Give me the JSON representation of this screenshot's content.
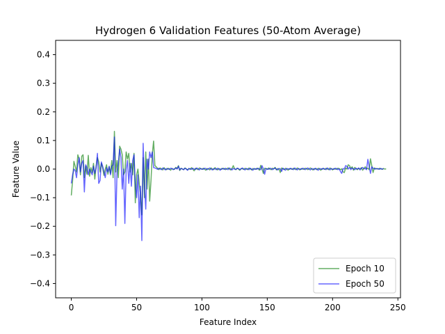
{
  "chart_data": {
    "type": "line",
    "title": "Hydrogen 6 Validation Features (50-Atom Average)",
    "xlabel": "Feature Index",
    "ylabel": "Feature Value",
    "xlim": [
      -12,
      252
    ],
    "ylim": [
      -0.45,
      0.45
    ],
    "xticks": [
      0,
      50,
      100,
      150,
      200,
      250
    ],
    "yticks": [
      -0.4,
      -0.3,
      -0.2,
      -0.1,
      0.0,
      0.1,
      0.2,
      0.3,
      0.4
    ],
    "xtick_labels": [
      "0",
      "50",
      "100",
      "150",
      "200",
      "250"
    ],
    "ytick_labels": [
      "−0.4",
      "−0.3",
      "−0.2",
      "−0.1",
      "0.0",
      "0.1",
      "0.2",
      "0.3",
      "0.4"
    ],
    "grid": false,
    "legend_position": "lower-right",
    "series": [
      {
        "name": "Epoch 10",
        "color": "#228b22",
        "opacity": 0.7,
        "x_start": 0,
        "x_step": 1,
        "values": [
          -0.092,
          -0.04,
          0.027,
          0.01,
          -0.01,
          0.05,
          0.035,
          -0.02,
          0.045,
          0.05,
          -0.03,
          0.01,
          -0.018,
          0.048,
          -0.025,
          0.005,
          -0.012,
          0.02,
          -0.035,
          0.01,
          0.04,
          0.025,
          -0.01,
          0.02,
          0.005,
          -0.022,
          0.0,
          0.015,
          -0.018,
          0.008,
          -0.015,
          0.03,
          -0.03,
          0.132,
          -0.01,
          0.03,
          -0.03,
          0.08,
          0.07,
          0.05,
          -0.02,
          -0.01,
          0.06,
          0.035,
          0.055,
          -0.01,
          0.02,
          -0.02,
          0.055,
          -0.118,
          -0.02,
          0.0,
          -0.05,
          -0.09,
          -0.16,
          0.04,
          -0.1,
          0.06,
          -0.07,
          0.035,
          -0.112,
          -0.04,
          0.052,
          0.098,
          0.012,
          0.008,
          0.003,
          -0.002,
          0.004,
          0.001,
          -0.003,
          0.005,
          0.0,
          -0.002,
          0.003,
          0.001,
          -0.004,
          0.002,
          0.0,
          -0.001,
          0.006,
          0.002,
          0.012,
          -0.005,
          0.003,
          0.0,
          -0.002,
          0.004,
          0.001,
          -0.003,
          0.002,
          -0.001,
          0.005,
          0.0,
          -0.006,
          0.003,
          0.001,
          -0.002,
          0.004,
          0.002,
          -0.001,
          0.003,
          0.0,
          -0.004,
          0.002,
          0.001,
          -0.003,
          0.004,
          0.0,
          -0.002,
          0.005,
          0.001,
          -0.003,
          0.002,
          0.0,
          -0.001,
          0.003,
          0.002,
          -0.002,
          0.001,
          0.004,
          0.0,
          -0.003,
          0.002,
          0.012,
          0.001,
          -0.002,
          0.003,
          0.0,
          -0.004,
          0.002,
          0.001,
          -0.001,
          0.003,
          0.0,
          -0.002,
          0.004,
          0.001,
          -0.003,
          0.002,
          0.0,
          -0.001,
          0.003,
          0.002,
          -0.004,
          0.013,
          0.0,
          -0.015,
          0.003,
          0.002,
          -0.001,
          0.004,
          0.0,
          -0.002,
          0.003,
          0.001,
          0.006,
          -0.003,
          0.002,
          0.0,
          -0.012,
          0.004,
          0.001,
          -0.002,
          0.003,
          0.0,
          -0.004,
          0.002,
          0.001,
          -0.001,
          0.003,
          0.0,
          -0.002,
          0.004,
          0.001,
          -0.003,
          0.002,
          0.0,
          -0.001,
          0.003,
          0.002,
          -0.002,
          0.001,
          0.004,
          0.0,
          -0.003,
          0.002,
          0.001,
          -0.002,
          0.003,
          0.0,
          -0.004,
          0.002,
          0.001,
          -0.001,
          0.003,
          0.0,
          -0.002,
          0.004,
          0.001,
          -0.003,
          0.002,
          0.0,
          -0.001,
          0.003,
          0.002,
          -0.002,
          0.001,
          -0.01,
          -0.012,
          0.004,
          0.0,
          0.015,
          0.012,
          0.002,
          0.008,
          -0.004,
          0.006,
          0.001,
          -0.002,
          0.003,
          0.0,
          0.005,
          -0.004,
          0.002,
          0.008,
          0.001,
          0.003,
          -0.002,
          0.036,
          0.012,
          -0.012,
          0.004,
          0.002,
          0.001,
          0.0,
          0.003,
          0.001,
          -0.001,
          0.002,
          0.0,
          0.001
        ],
        "legend_label": "Epoch 10"
      },
      {
        "name": "Epoch 50",
        "color": "#0000ff",
        "opacity": 0.6,
        "x_start": 0,
        "x_step": 1,
        "values": [
          -0.05,
          -0.02,
          0.0,
          -0.005,
          -0.03,
          0.015,
          0.04,
          -0.01,
          0.02,
          0.03,
          -0.08,
          0.015,
          0.005,
          -0.02,
          0.0,
          -0.01,
          -0.02,
          0.01,
          -0.015,
          0.005,
          0.055,
          -0.05,
          -0.04,
          0.025,
          0.01,
          -0.01,
          -0.03,
          0.005,
          -0.01,
          0.01,
          -0.02,
          0.01,
          0.015,
          0.112,
          -0.198,
          -0.01,
          0.02,
          0.07,
          0.04,
          -0.07,
          0.0,
          -0.19,
          0.0,
          0.03,
          -0.05,
          0.02,
          -0.06,
          0.03,
          0.05,
          -0.05,
          -0.1,
          -0.02,
          -0.17,
          -0.06,
          -0.25,
          0.09,
          -0.06,
          -0.14,
          0.035,
          0.0,
          0.06,
          0.04,
          0.06,
          0.005,
          0.004,
          0.002,
          -0.001,
          0.003,
          0.0,
          -0.002,
          0.004,
          0.001,
          -0.003,
          0.002,
          0.0,
          -0.001,
          0.003,
          0.002,
          -0.002,
          0.001,
          0.004,
          0.0,
          0.01,
          -0.003,
          0.002,
          0.001,
          -0.002,
          0.003,
          0.0,
          -0.004,
          0.002,
          0.001,
          -0.001,
          0.003,
          0.0,
          -0.002,
          0.004,
          0.001,
          -0.003,
          0.002,
          0.0,
          -0.001,
          0.003,
          0.002,
          -0.002,
          0.001,
          0.004,
          0.0,
          -0.003,
          0.002,
          0.001,
          -0.002,
          0.003,
          0.0,
          -0.004,
          0.002,
          0.001,
          -0.001,
          0.003,
          0.0,
          -0.002,
          0.004,
          0.001,
          -0.003,
          0.002,
          0.0,
          -0.001,
          0.003,
          0.002,
          -0.002,
          0.001,
          0.004,
          0.0,
          -0.003,
          0.002,
          0.001,
          -0.002,
          0.003,
          0.0,
          -0.004,
          0.002,
          0.001,
          -0.001,
          0.003,
          0.0,
          -0.002,
          0.012,
          0.001,
          -0.018,
          0.002,
          0.0,
          -0.001,
          0.003,
          0.002,
          -0.002,
          0.001,
          0.004,
          0.0,
          -0.003,
          0.002,
          0.001,
          -0.008,
          0.003,
          0.0,
          -0.004,
          0.002,
          0.001,
          -0.001,
          0.003,
          0.0,
          -0.002,
          0.004,
          0.001,
          -0.003,
          0.002,
          0.0,
          -0.001,
          0.003,
          0.002,
          -0.002,
          0.001,
          0.004,
          0.0,
          -0.003,
          0.002,
          0.001,
          -0.002,
          0.003,
          0.0,
          -0.004,
          0.002,
          0.001,
          -0.001,
          0.003,
          0.0,
          -0.002,
          0.004,
          0.001,
          -0.003,
          0.002,
          0.0,
          -0.001,
          0.003,
          0.002,
          -0.002,
          0.001,
          -0.008,
          -0.015,
          0.002,
          0.0,
          0.012,
          0.01,
          0.0,
          0.006,
          -0.002,
          0.004,
          0.001,
          -0.002,
          0.003,
          0.0,
          0.004,
          -0.003,
          0.002,
          0.006,
          0.001,
          0.002,
          -0.002,
          0.034,
          0.01,
          -0.015,
          0.008,
          0.003,
          0.001,
          0.0,
          0.002,
          0.001,
          -0.001,
          0.002,
          0.0,
          0.001
        ],
        "legend_label": "Epoch 50"
      }
    ]
  }
}
